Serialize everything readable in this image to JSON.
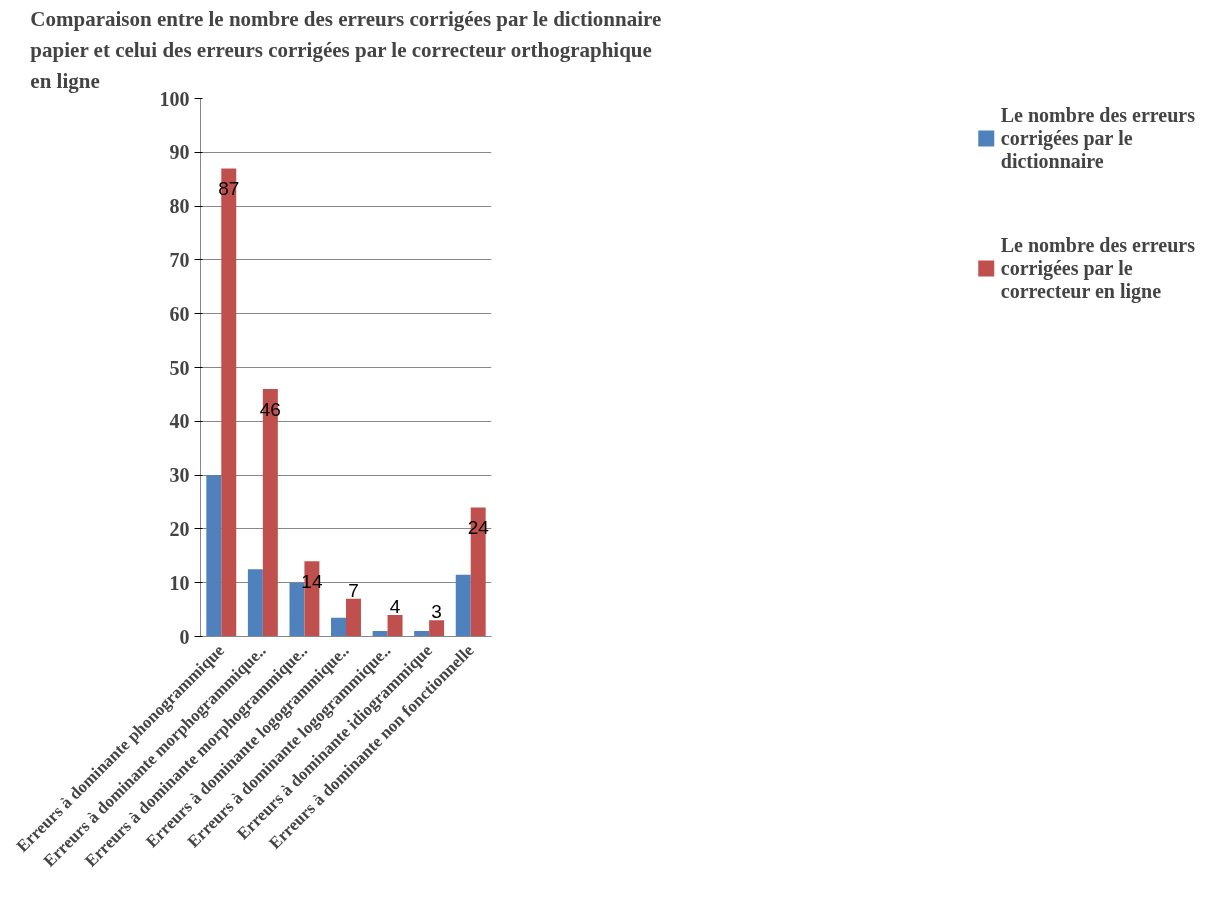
{
  "chart_data": {
    "type": "bar",
    "title": "Comparaison entre le nombre des erreurs corrigées par le dictionnaire papier et celui des erreurs corrigées par le correcteur orthographique en ligne",
    "categories": [
      "Erreurs à dominante phonogrammique",
      "Erreurs à dominante morphogrammique..",
      "Erreurs à dominante morphogrammique..",
      "Erreurs à dominante logogrammique..",
      "Erreurs à dominante logogrammique..",
      "Erreurs à dominante idiogrammique",
      "Erreurs à dominante non fonctionnelle"
    ],
    "series": [
      {
        "name": "Le nombre des erreurs corrigées par le dictionnaire",
        "color": "#4f81bd",
        "values": [
          30,
          12.5,
          10,
          3.5,
          1,
          1,
          11.5
        ]
      },
      {
        "name": "Le nombre des erreurs corrigées par le correcteur en ligne",
        "color": "#c0504d",
        "values": [
          87,
          46,
          14,
          7,
          4,
          3,
          24
        ],
        "value_labels": [
          "87",
          "46",
          "14",
          "7",
          "4",
          "3",
          "24"
        ]
      }
    ],
    "ylim": [
      0,
      100
    ],
    "yticks": [
      0,
      10,
      20,
      30,
      40,
      50,
      60,
      70,
      80,
      90,
      100
    ],
    "grid": "y",
    "legend": "right"
  }
}
